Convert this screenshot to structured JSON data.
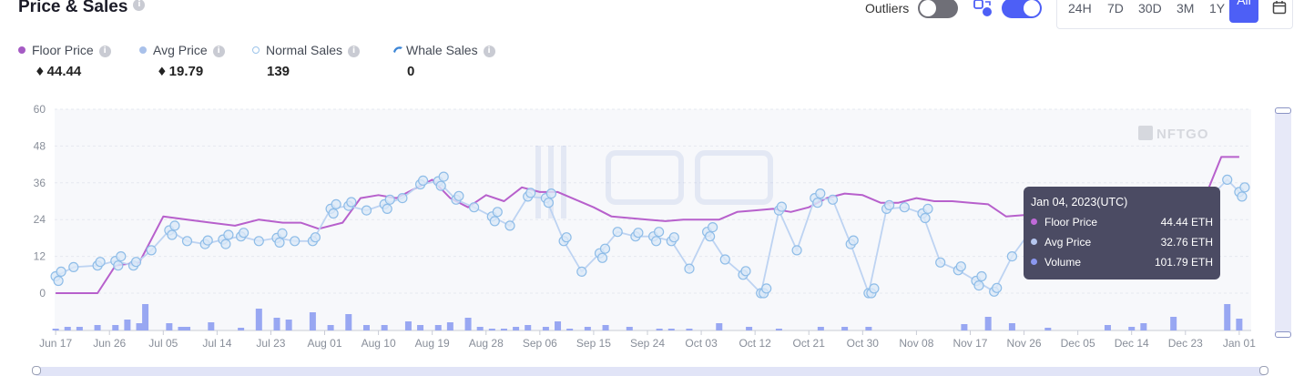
{
  "header": {
    "title": "Price & Sales",
    "outliers_label": "Outliers",
    "range_buttons": [
      "24H",
      "7D",
      "30D",
      "3M",
      "1Y",
      "All"
    ],
    "active_range": "All"
  },
  "legend": [
    {
      "label": "Floor Price",
      "value": "44.44",
      "color": "#a55bc4",
      "currency": "♦"
    },
    {
      "label": "Avg Price",
      "value": "19.79",
      "color": "#a9c1ea",
      "currency": "♦"
    },
    {
      "label": "Normal Sales",
      "value": "139",
      "color": "#bcd9f5"
    },
    {
      "label": "Whale Sales",
      "value": "0",
      "color": "#4a8fd8"
    }
  ],
  "watermark": "NFTGO",
  "tooltip": {
    "date": "Jan 04, 2023(UTC)",
    "rows": [
      {
        "label": "Floor Price",
        "value": "44.44 ETH",
        "color": "#c06ad8"
      },
      {
        "label": "Avg Price",
        "value": "32.76 ETH",
        "color": "#b6c7ef"
      },
      {
        "label": "Volume",
        "value": "101.79 ETH",
        "color": "#8b98f0"
      }
    ]
  },
  "chart_data": {
    "type": "line",
    "x_tick_labels": [
      "Jun 17",
      "Jun 26",
      "Jul 05",
      "Jul 14",
      "Jul 23",
      "Aug 01",
      "Aug 10",
      "Aug 19",
      "Aug 28",
      "Sep 06",
      "Sep 15",
      "Sep 24",
      "Oct 03",
      "Oct 12",
      "Oct 21",
      "Oct 30",
      "Nov 08",
      "Nov 17",
      "Nov 26",
      "Dec 05",
      "Dec 14",
      "Dec 23",
      "Jan 01"
    ],
    "y_ticks": [
      0,
      12,
      24,
      36,
      48,
      60
    ],
    "ylim": [
      0,
      60
    ],
    "xlim_days": [
      -2,
      200
    ],
    "series": [
      {
        "name": "Floor Price",
        "color": "#b760cc",
        "x": [
          0,
          4,
          7,
          10,
          14,
          18,
          22,
          26,
          30,
          34,
          38,
          41,
          44,
          48,
          51,
          54,
          57,
          60,
          63,
          66,
          69,
          72,
          75,
          78,
          81,
          84,
          87,
          90,
          93,
          96,
          99,
          102,
          105,
          108,
          111,
          114,
          117,
          120,
          123,
          126,
          129,
          132,
          135,
          138,
          141,
          144,
          147,
          150,
          153,
          156,
          159,
          162,
          165,
          168,
          171,
          174,
          177,
          180,
          183,
          186,
          189,
          192,
          195,
          198
        ],
        "y": [
          0,
          0,
          0,
          9,
          10,
          25,
          24,
          23,
          22,
          24,
          23,
          23,
          21,
          23,
          31,
          32,
          31,
          34,
          37,
          31,
          28,
          32,
          30,
          34.5,
          33,
          33,
          30.5,
          28,
          25,
          24.5,
          24,
          23.5,
          24,
          24,
          24,
          26.5,
          27,
          27.5,
          26.5,
          28,
          31,
          32.5,
          32,
          29.5,
          29.5,
          31,
          30,
          30,
          29.5,
          29,
          25,
          25.5,
          25.5,
          25,
          22.5,
          23.5,
          25,
          24,
          25.5,
          27,
          29,
          30,
          44.44,
          44.44
        ]
      },
      {
        "name": "Avg Price",
        "color": "#bdd3f2",
        "x": [
          0,
          3,
          7,
          10,
          13,
          16,
          19,
          22,
          25,
          28,
          31,
          34,
          37,
          40,
          43,
          46,
          49,
          52,
          55,
          58,
          61,
          64,
          67,
          70,
          73,
          76,
          79,
          82,
          85,
          88,
          91,
          94,
          97,
          100,
          103,
          106,
          109,
          112,
          115,
          118,
          121,
          124,
          127,
          130,
          133,
          136,
          139,
          142,
          145,
          148,
          151,
          154,
          157,
          160,
          163,
          166,
          169,
          172,
          175,
          178,
          181,
          184,
          187,
          190,
          193,
          196,
          198
        ],
        "y": [
          5.5,
          8.5,
          9,
          10.5,
          9,
          14,
          20.5,
          17,
          16,
          17.5,
          18.5,
          17,
          18,
          17,
          17,
          27.5,
          28.5,
          27,
          29,
          31,
          35.5,
          36.5,
          30.5,
          28,
          25,
          22,
          31.5,
          31,
          17,
          7,
          13,
          20,
          18.5,
          18.5,
          17,
          8,
          20,
          11,
          6,
          0,
          27,
          14,
          31,
          30.5,
          16,
          0,
          27.5,
          28,
          26,
          10,
          7.5,
          4,
          0.5,
          12,
          20,
          14,
          24,
          19.5,
          23,
          20,
          25,
          22,
          25,
          29,
          31,
          37,
          33
        ]
      }
    ],
    "volume_bars": {
      "color": "#98a7f2",
      "x": [
        0,
        2,
        4,
        7,
        10,
        12,
        14,
        15,
        19,
        21,
        22,
        26,
        31,
        34,
        37,
        39,
        43,
        46,
        49,
        52,
        55,
        59,
        61,
        64,
        66,
        69,
        71,
        73,
        75,
        77,
        79,
        82,
        84,
        86,
        89,
        92,
        96,
        101,
        103,
        106,
        111,
        116,
        121,
        128,
        132,
        136,
        152,
        156,
        160,
        166,
        176,
        180,
        182,
        187,
        196,
        198
      ],
      "values": [
        2,
        4,
        4,
        6,
        6,
        12,
        8,
        29,
        8,
        4,
        4,
        9,
        3,
        24,
        14,
        12,
        20,
        6,
        18,
        6,
        6,
        10,
        6,
        6,
        9,
        14,
        4,
        2,
        2,
        4,
        6,
        4,
        10,
        2,
        4,
        6,
        4,
        2,
        2,
        2,
        8,
        4,
        2,
        4,
        4,
        4,
        7,
        15,
        8,
        3,
        6,
        4,
        8,
        15,
        29,
        13
      ]
    }
  }
}
